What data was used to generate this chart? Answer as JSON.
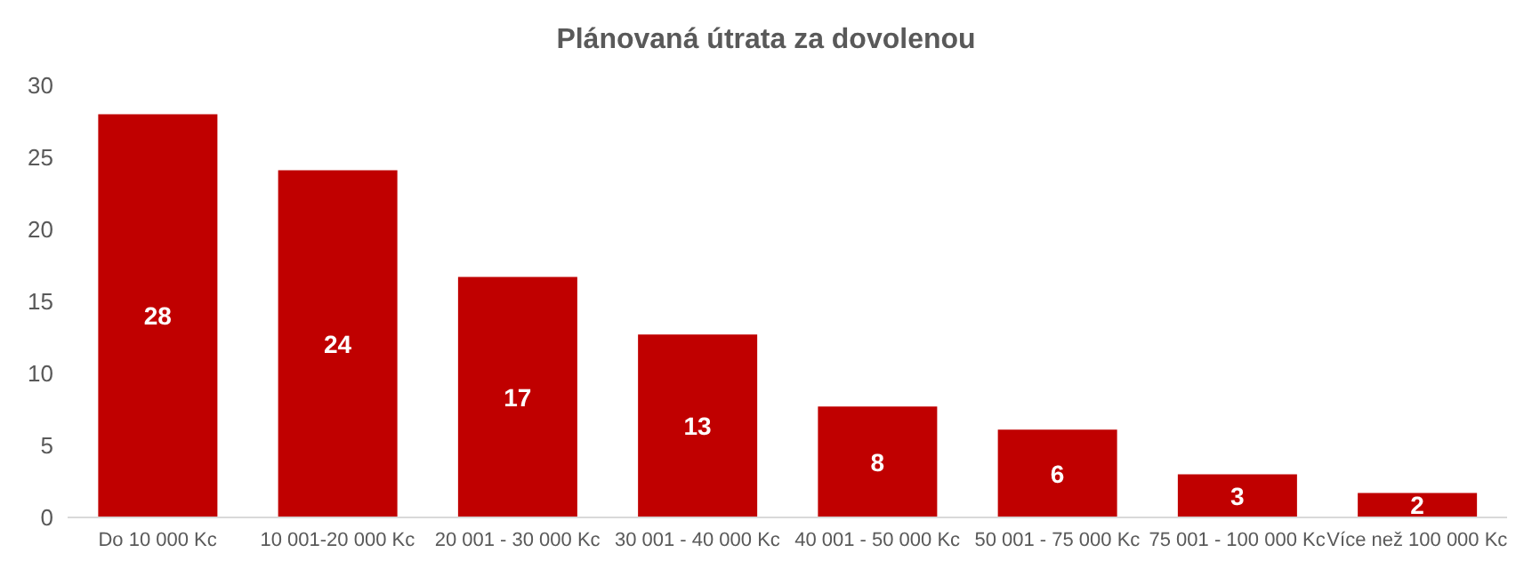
{
  "chart_data": {
    "type": "bar",
    "title": "Plánovaná útrata za dovolenou",
    "categories": [
      "Do 10 000 Kc",
      "10 001-20 000 Kc",
      "20 001 - 30 000 Kc",
      "30 001 - 40 000 Kc",
      "40 001 - 50 000 Kc",
      "50 001 - 75 000 Kc",
      "75 001 - 100 000 Kc",
      "Více než 100 000 Kc"
    ],
    "values": [
      28,
      24.1,
      16.7,
      12.7,
      7.7,
      6.1,
      3,
      1.7
    ],
    "value_labels": [
      "28",
      "24",
      "17",
      "13",
      "8",
      "6",
      "3",
      "2"
    ],
    "color": "#c00000",
    "ylim": [
      0,
      30
    ],
    "yticks": [
      0,
      5,
      10,
      15,
      20,
      25,
      30
    ],
    "grid": false,
    "legend": false
  }
}
